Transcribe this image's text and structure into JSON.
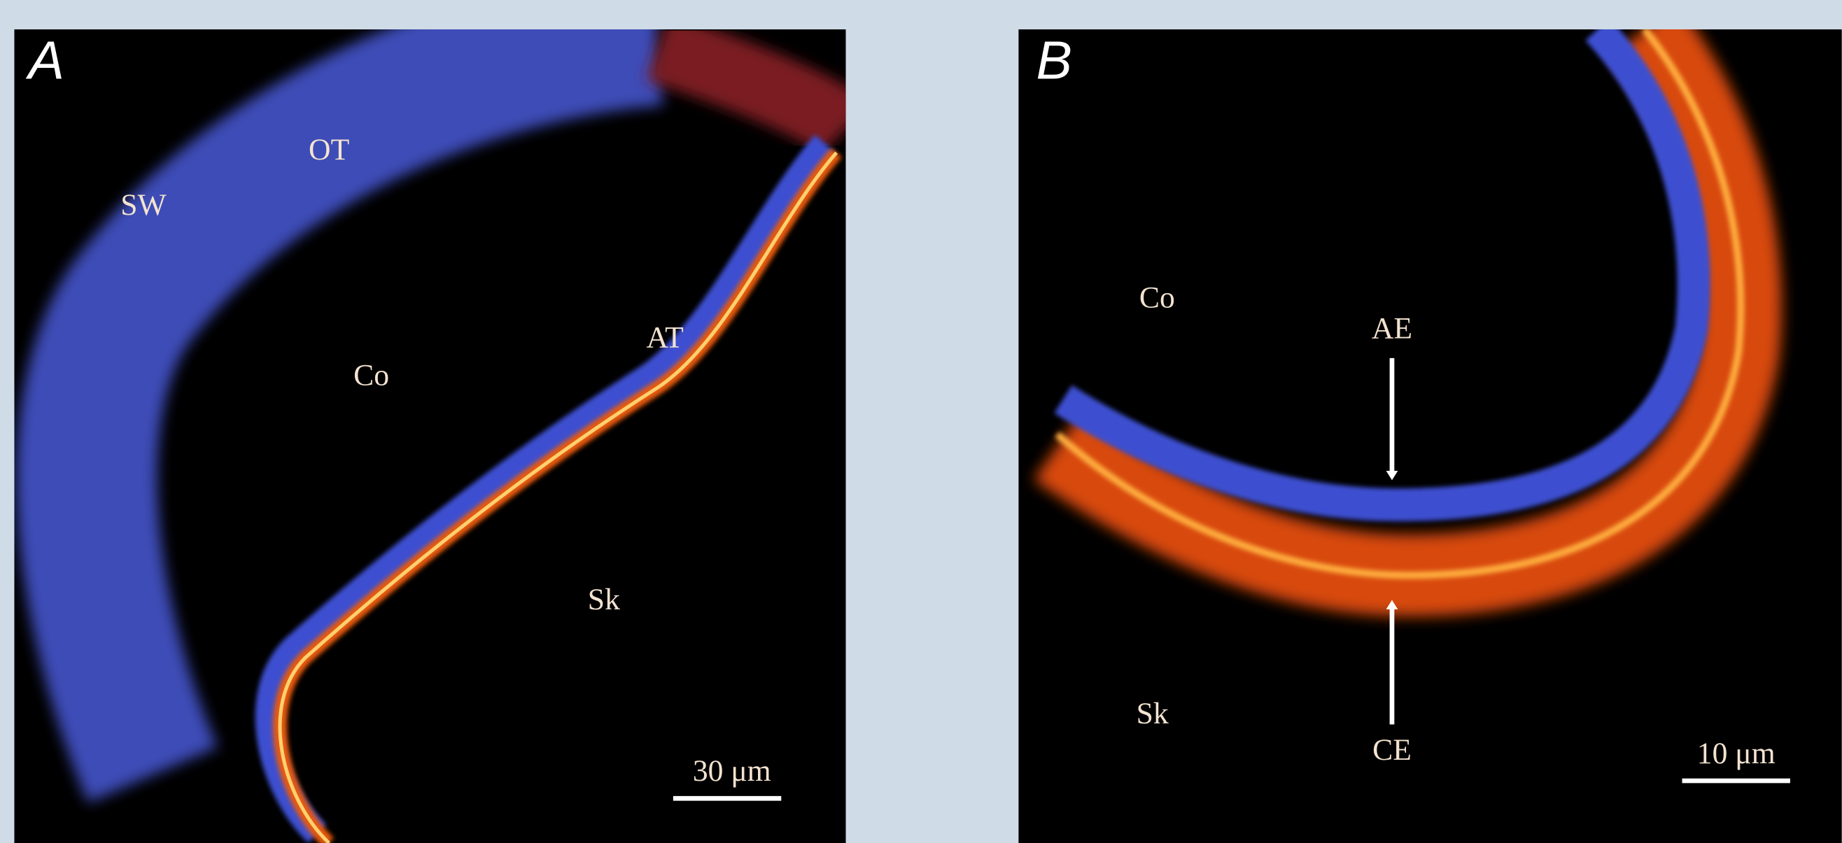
{
  "panels": [
    {
      "label": "A",
      "annotations": [
        "OT",
        "SW",
        "Co",
        "AT",
        "Sk"
      ],
      "scale_bar": "30 μm"
    },
    {
      "label": "B",
      "annotations": [
        "Co",
        "AE",
        "Sk",
        "CE"
      ],
      "scale_bar": "10 μm"
    }
  ]
}
